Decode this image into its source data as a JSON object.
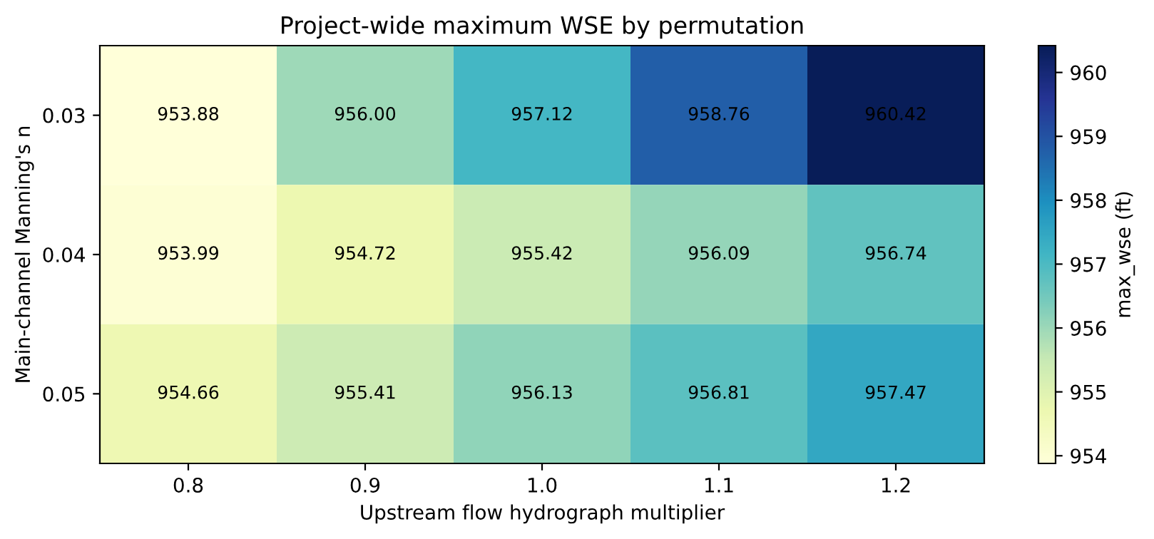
{
  "chart_data": {
    "type": "heatmap",
    "title": "Project-wide maximum WSE by permutation",
    "xlabel": "Upstream flow hydrograph multiplier",
    "ylabel": "Main-channel Manning's n",
    "clabel": "max_wse (ft)",
    "categories": [
      "0.8",
      "0.9",
      "1.0",
      "1.1",
      "1.2"
    ],
    "y_categories": [
      "0.03",
      "0.04",
      "0.05"
    ],
    "cells": [
      [
        953.88,
        956.0,
        957.12,
        958.76,
        960.42
      ],
      [
        953.99,
        954.72,
        955.42,
        956.09,
        956.74
      ],
      [
        954.66,
        955.41,
        956.13,
        956.81,
        957.47
      ]
    ],
    "cell_labels": [
      [
        "953.88",
        "956.00",
        "957.12",
        "958.76",
        "960.42"
      ],
      [
        "953.99",
        "954.72",
        "955.42",
        "956.09",
        "956.74"
      ],
      [
        "954.66",
        "955.41",
        "956.13",
        "956.81",
        "957.47"
      ]
    ],
    "clim": [
      953.88,
      960.42
    ],
    "cticks": [
      954,
      955,
      956,
      957,
      958,
      959,
      960
    ],
    "data_labels": true
  }
}
